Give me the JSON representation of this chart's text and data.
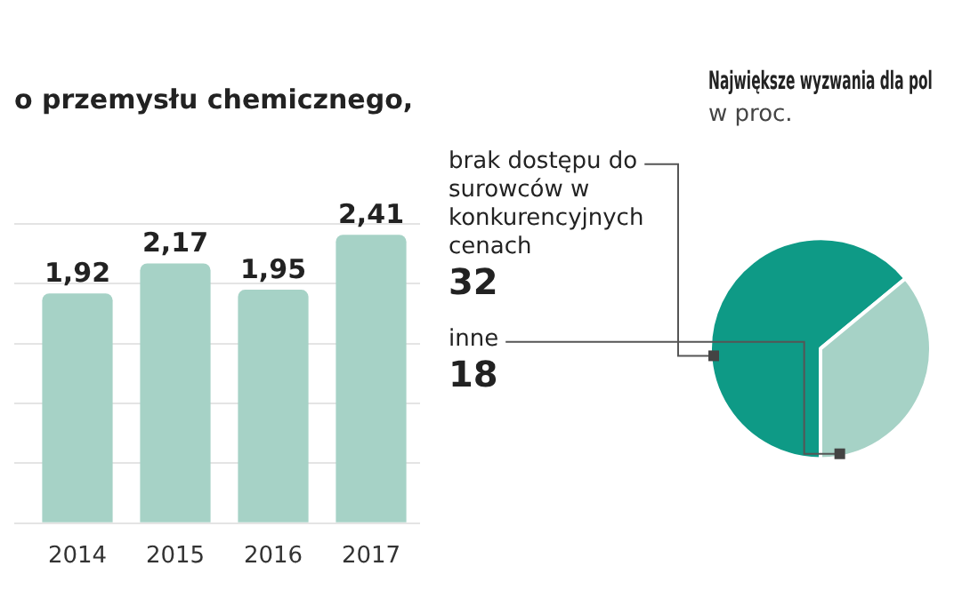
{
  "chart_data": [
    {
      "type": "bar",
      "title": "o przemysłu chemicznego,",
      "categories": [
        "2014",
        "2015",
        "2016",
        "2017"
      ],
      "values": [
        1.92,
        2.17,
        1.95,
        2.41
      ],
      "value_labels": [
        "1,92",
        "2,17",
        "1,95",
        "2,41"
      ],
      "color": "#a6d2c6",
      "grid": "y",
      "tick_labels": "x"
    },
    {
      "type": "pie",
      "title": "Największe wyzwania dla pol",
      "subtitle": "w proc.",
      "categories": [
        "brak dostępu do surowców w konkurencyjnych cenach",
        "inne"
      ],
      "values": [
        32,
        18
      ],
      "colors": [
        "#0e9a86",
        "#a6d2c6"
      ],
      "data_labels": true
    }
  ]
}
